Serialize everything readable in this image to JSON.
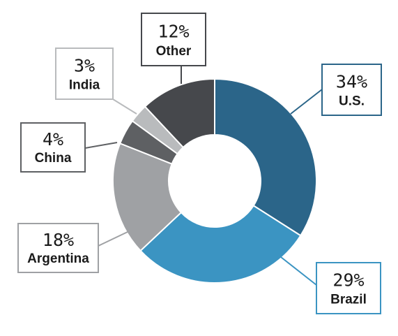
{
  "chart_data": {
    "type": "pie",
    "donut": true,
    "slices": [
      {
        "label": "U.S.",
        "percent_text": "34%",
        "value": 34,
        "color": "#2b6589",
        "box_border": "#2b6589"
      },
      {
        "label": "Brazil",
        "percent_text": "29%",
        "value": 29,
        "color": "#3b94c2",
        "box_border": "#3b94c2"
      },
      {
        "label": "Argentina",
        "percent_text": "18%",
        "value": 18,
        "color": "#9fa1a4",
        "box_border": "#9fa1a4"
      },
      {
        "label": "China",
        "percent_text": "4%",
        "value": 4,
        "color": "#5e6063",
        "box_border": "#5e6063"
      },
      {
        "label": "India",
        "percent_text": "3%",
        "value": 3,
        "color": "#b9bbbd",
        "box_border": "#b9bbbd"
      },
      {
        "label": "Other",
        "percent_text": "12%",
        "value": 12,
        "color": "#46484c",
        "box_border": "#46484c"
      }
    ]
  }
}
